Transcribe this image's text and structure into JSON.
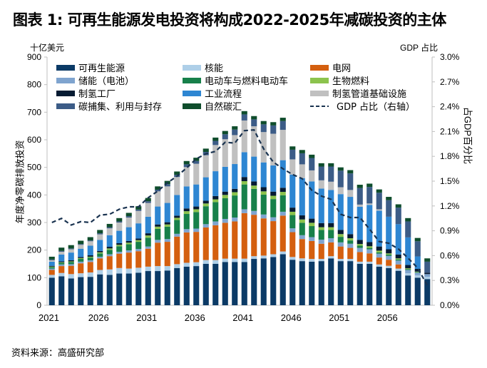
{
  "title": "图表 1: 可再生能源发电投资将构成2022-2025年减碳投资的主体",
  "source": "资料来源：高盛研究部",
  "chart_data": {
    "type": "bar",
    "stacked": true,
    "title": "图表 1: 可再生能源发电投资将构成2022-2025年减碳投资的主体",
    "y_unit_left": "十亿美元",
    "y_unit_right": "GDP 占比",
    "ylabel": "年度净零碳排放投资",
    "ylabel_right": "占GDP百分比",
    "xlabel": "",
    "ylim": [
      0,
      900
    ],
    "ylim_right": [
      0,
      3.0
    ],
    "yticks": [
      "0",
      "100",
      "200",
      "300",
      "400",
      "500",
      "600",
      "700",
      "800",
      "900"
    ],
    "yticks_right": [
      "0.0%",
      "0.3%",
      "0.6%",
      "0.9%",
      "1.2%",
      "1.5%",
      "1.8%",
      "2.1%",
      "2.4%",
      "2.7%",
      "3.0%"
    ],
    "xtick_labels": [
      "2021",
      "2026",
      "2031",
      "2036",
      "2041",
      "2046",
      "2051",
      "2056"
    ],
    "legend_position": "top",
    "categories": [
      "2021",
      "2022",
      "2023",
      "2024",
      "2025",
      "2026",
      "2027",
      "2028",
      "2029",
      "2030",
      "2031",
      "2032",
      "2033",
      "2034",
      "2035",
      "2036",
      "2037",
      "2038",
      "2039",
      "2040",
      "2041",
      "2042",
      "2043",
      "2044",
      "2045",
      "2046",
      "2047",
      "2048",
      "2049",
      "2050",
      "2051",
      "2052",
      "2053",
      "2054",
      "2055",
      "2056",
      "2057",
      "2058",
      "2059",
      "2060"
    ],
    "series": [
      {
        "name": "可再生能源",
        "color": "#0b3a66",
        "values": [
          100,
          105,
          97,
          102,
          103,
          112,
          110,
          115,
          115,
          118,
          124,
          124,
          126,
          135,
          140,
          142,
          150,
          150,
          157,
          157,
          157,
          168,
          170,
          175,
          185,
          165,
          160,
          158,
          160,
          170,
          160,
          160,
          150,
          150,
          140,
          135,
          125,
          108,
          100,
          95
        ]
      },
      {
        "name": "核能",
        "color": "#aecfe8",
        "values": [
          10,
          12,
          16,
          14,
          16,
          16,
          20,
          20,
          18,
          18,
          16,
          18,
          16,
          14,
          14,
          14,
          14,
          14,
          12,
          12,
          12,
          10,
          10,
          10,
          10,
          10,
          10,
          10,
          8,
          8,
          8,
          8,
          8,
          8,
          8,
          8,
          8,
          8,
          8,
          8
        ]
      },
      {
        "name": "电网",
        "color": "#d45f0f",
        "values": [
          18,
          25,
          30,
          36,
          38,
          42,
          48,
          52,
          58,
          60,
          65,
          85,
          88,
          100,
          110,
          110,
          118,
          126,
          130,
          135,
          165,
          150,
          135,
          120,
          130,
          90,
          70,
          65,
          55,
          50,
          45,
          40,
          35,
          30,
          25,
          22,
          15,
          0,
          0,
          0
        ]
      },
      {
        "name": "储能（电池）",
        "color": "#7fa4cf",
        "values": [
          5,
          6,
          6,
          6,
          6,
          6,
          7,
          7,
          8,
          8,
          8,
          10,
          10,
          10,
          12,
          12,
          12,
          14,
          14,
          14,
          14,
          14,
          14,
          14,
          14,
          14,
          14,
          14,
          15,
          15,
          15,
          15,
          15,
          15,
          14,
          14,
          14,
          12,
          10,
          10
        ]
      },
      {
        "name": "电动车与燃料电动车",
        "color": "#17804a",
        "values": [
          5,
          6,
          8,
          10,
          10,
          12,
          16,
          20,
          22,
          26,
          32,
          40,
          45,
          50,
          55,
          60,
          65,
          70,
          75,
          80,
          90,
          80,
          72,
          66,
          60,
          48,
          45,
          40,
          35,
          30,
          20,
          12,
          8,
          5,
          5,
          5,
          4,
          3,
          2,
          0
        ]
      },
      {
        "name": "生物燃料",
        "color": "#8cc34d",
        "values": [
          2,
          2,
          2,
          3,
          3,
          4,
          5,
          5,
          6,
          6,
          8,
          8,
          8,
          8,
          10,
          10,
          10,
          10,
          12,
          12,
          12,
          12,
          12,
          12,
          12,
          12,
          12,
          12,
          10,
          10,
          10,
          8,
          6,
          6,
          6,
          4,
          4,
          3,
          2,
          0
        ]
      },
      {
        "name": "制氢工厂",
        "color": "#061b33",
        "values": [
          3,
          3,
          4,
          4,
          5,
          5,
          6,
          6,
          6,
          6,
          8,
          8,
          8,
          8,
          10,
          10,
          10,
          12,
          12,
          12,
          15,
          15,
          15,
          15,
          15,
          15,
          15,
          15,
          15,
          15,
          15,
          15,
          15,
          15,
          15,
          15,
          14,
          12,
          10,
          5
        ]
      },
      {
        "name": "工业流程",
        "color": "#2e86d2",
        "values": [
          15,
          25,
          28,
          30,
          35,
          40,
          42,
          45,
          50,
          55,
          60,
          65,
          70,
          75,
          80,
          80,
          85,
          90,
          90,
          90,
          90,
          90,
          90,
          95,
          100,
          120,
          135,
          135,
          125,
          120,
          130,
          135,
          120,
          135,
          130,
          118,
          110,
          100,
          45,
          0
        ]
      },
      {
        "name": "制氢管道基础设施",
        "color": "#c0c0c0",
        "values": [
          5,
          10,
          12,
          14,
          16,
          20,
          25,
          30,
          35,
          45,
          50,
          55,
          60,
          65,
          70,
          75,
          80,
          95,
          100,
          105,
          115,
          110,
          110,
          115,
          110,
          55,
          50,
          40,
          30,
          30,
          25,
          25,
          8,
          5,
          5,
          0,
          0,
          0,
          0,
          0
        ]
      },
      {
        "name": "碳捕集、利用与封存",
        "color": "#3c5c87",
        "values": [
          3,
          3,
          3,
          3,
          3,
          4,
          4,
          4,
          5,
          5,
          6,
          6,
          8,
          8,
          10,
          10,
          12,
          15,
          18,
          20,
          22,
          25,
          28,
          30,
          32,
          35,
          40,
          45,
          50,
          55,
          60,
          60,
          60,
          60,
          60,
          60,
          60,
          58,
          55,
          40
        ]
      },
      {
        "name": "自然碳汇",
        "color": "#0f4d2c",
        "values": [
          10,
          12,
          12,
          12,
          12,
          12,
          12,
          12,
          12,
          12,
          12,
          12,
          12,
          12,
          12,
          12,
          12,
          12,
          12,
          12,
          12,
          12,
          12,
          12,
          12,
          12,
          12,
          12,
          12,
          12,
          12,
          12,
          12,
          12,
          12,
          12,
          12,
          12,
          12,
          12
        ]
      }
    ],
    "line_series": {
      "name": "GDP 占比（右轴）",
      "axis": "right",
      "color": "#1a3350",
      "style": "dashed",
      "values": [
        1.0,
        1.05,
        0.97,
        1.01,
        1.0,
        1.09,
        1.1,
        1.16,
        1.19,
        1.19,
        1.3,
        1.38,
        1.48,
        1.56,
        1.66,
        1.77,
        1.83,
        1.86,
        1.97,
        1.96,
        2.11,
        2.12,
        1.89,
        1.73,
        1.65,
        1.58,
        1.53,
        1.39,
        1.32,
        1.28,
        1.1,
        1.06,
        1.06,
        0.92,
        0.77,
        0.75,
        0.68,
        0.57,
        0.45,
        0.24
      ]
    }
  }
}
